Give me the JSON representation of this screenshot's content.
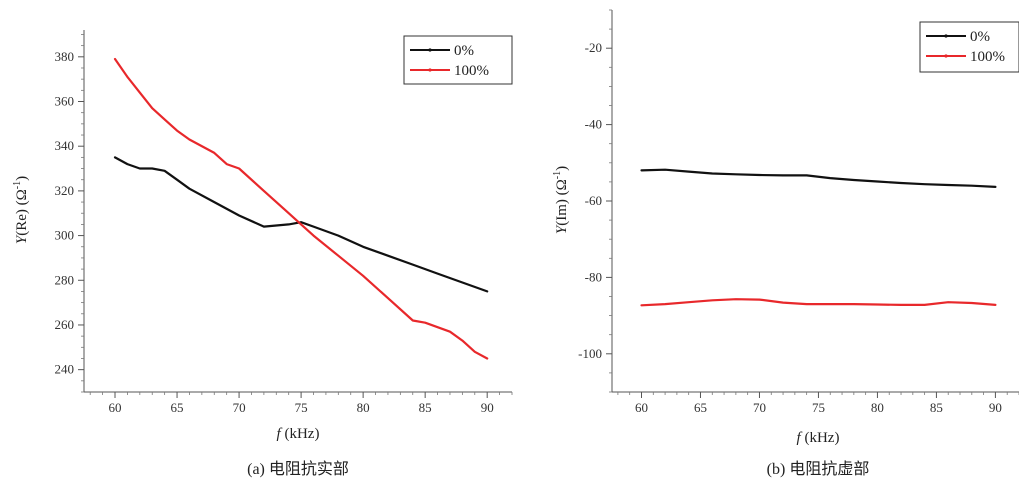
{
  "chart_data": [
    {
      "type": "line",
      "caption": "(a) 电阻抗实部",
      "xlabel_italic": "f",
      "xlabel_rest": " (kHz)",
      "ylabel_main": "Y",
      "ylabel_rest": "(Re) (Ω",
      "ylabel_sup": "-1",
      "ylabel_close": ")",
      "xlim": [
        57.5,
        92
      ],
      "ylim": [
        230,
        392
      ],
      "xticks": [
        "60",
        "65",
        "70",
        "75",
        "80",
        "85",
        "90"
      ],
      "yticks": [
        "240",
        "260",
        "280",
        "300",
        "320",
        "340",
        "360",
        "380"
      ],
      "legend_position": "top-right",
      "grid": false,
      "colors": {
        "0%": "#111111",
        "100%": "#e8282b"
      },
      "series": [
        {
          "name": "0%",
          "x": [
            60,
            61,
            62,
            63,
            64,
            65,
            66,
            68,
            70,
            72,
            74,
            75,
            76,
            78,
            80,
            82,
            84,
            86,
            88,
            90
          ],
          "y": [
            335,
            332,
            330,
            330,
            329,
            325,
            321,
            315,
            309,
            304,
            305,
            306,
            304,
            300,
            295,
            291,
            287,
            283,
            279,
            275
          ]
        },
        {
          "name": "100%",
          "x": [
            60,
            61,
            62,
            63,
            64,
            65,
            66,
            68,
            69,
            70,
            72,
            74,
            75,
            76,
            78,
            80,
            82,
            84,
            85,
            86,
            87,
            88,
            89,
            90
          ],
          "y": [
            379,
            371,
            364,
            357,
            352,
            347,
            343,
            337,
            332,
            330,
            320,
            310,
            305,
            300,
            291,
            282,
            272,
            262,
            261,
            259,
            257,
            253,
            248,
            245
          ]
        }
      ]
    },
    {
      "type": "line",
      "caption": "(b) 电阻抗虚部",
      "xlabel_italic": "f",
      "xlabel_rest": " (kHz)",
      "ylabel_main": "Y",
      "ylabel_rest": "(Im) (Ω",
      "ylabel_sup": "-1",
      "ylabel_close": ")",
      "xlim": [
        57.5,
        92
      ],
      "ylim": [
        -110,
        -10
      ],
      "xticks": [
        "60",
        "65",
        "70",
        "75",
        "80",
        "85",
        "90"
      ],
      "yticks": [
        "-20",
        "-40",
        "-60",
        "-80",
        "-100"
      ],
      "legend_position": "top-right",
      "grid": false,
      "colors": {
        "0%": "#111111",
        "100%": "#e8282b"
      },
      "series": [
        {
          "name": "0%",
          "x": [
            60,
            62,
            64,
            66,
            68,
            70,
            72,
            74,
            76,
            78,
            80,
            82,
            84,
            86,
            88,
            90
          ],
          "y": [
            -52.0,
            -51.8,
            -52.3,
            -52.8,
            -53.0,
            -53.2,
            -53.3,
            -53.3,
            -54.0,
            -54.5,
            -54.9,
            -55.3,
            -55.6,
            -55.8,
            -56.0,
            -56.3
          ]
        },
        {
          "name": "100%",
          "x": [
            60,
            62,
            64,
            66,
            68,
            70,
            72,
            74,
            76,
            78,
            80,
            82,
            84,
            86,
            88,
            90
          ],
          "y": [
            -87.3,
            -87.0,
            -86.5,
            -86.0,
            -85.7,
            -85.8,
            -86.6,
            -87.0,
            -87.0,
            -87.0,
            -87.1,
            -87.2,
            -87.2,
            -86.5,
            -86.7,
            -87.2
          ]
        }
      ]
    }
  ]
}
